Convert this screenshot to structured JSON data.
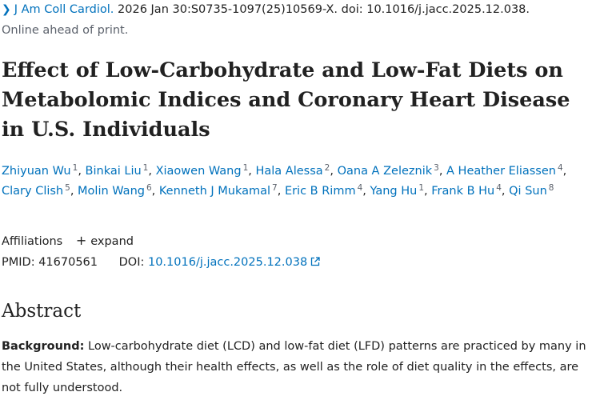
{
  "citation": {
    "journal": "J Am Coll Cardiol.",
    "details": "2026 Jan 30:S0735-1097(25)10569-X. doi: 10.1016/j.jacc.2025.12.038.",
    "status": "Online ahead of print."
  },
  "article": {
    "title": "Effect of Low-Carbohydrate and Low-Fat Diets on Metabolomic Indices and Coronary Heart Disease in U.S. Individuals"
  },
  "authors": [
    {
      "name": "Zhiyuan Wu",
      "aff": "1"
    },
    {
      "name": "Binkai Liu",
      "aff": "1"
    },
    {
      "name": "Xiaowen Wang",
      "aff": "1"
    },
    {
      "name": "Hala Alessa",
      "aff": "2"
    },
    {
      "name": "Oana A Zeleznik",
      "aff": "3"
    },
    {
      "name": "A Heather Eliassen",
      "aff": "4"
    },
    {
      "name": "Clary Clish",
      "aff": "5"
    },
    {
      "name": "Molin Wang",
      "aff": "6"
    },
    {
      "name": "Kenneth J Mukamal",
      "aff": "7"
    },
    {
      "name": "Eric B Rimm",
      "aff": "4"
    },
    {
      "name": "Yang Hu",
      "aff": "1"
    },
    {
      "name": "Frank B Hu",
      "aff": "4"
    },
    {
      "name": "Qi Sun",
      "aff": "8"
    }
  ],
  "affiliations": {
    "label": "Affiliations",
    "expand_label": "expand"
  },
  "identifiers": {
    "pmid_label": "PMID:",
    "pmid": "41670561",
    "doi_label": "DOI:",
    "doi": "10.1016/j.jacc.2025.12.038"
  },
  "abstract": {
    "heading": "Abstract",
    "background_label": "Background:",
    "background_text": " Low-carbohydrate diet (LCD) and low-fat diet (LFD) patterns are practiced by many in the United States, although their health effects, as well as the role of diet quality in the effects, are not fully understood."
  },
  "icons": {
    "breadcrumb": "chevron-right-icon",
    "expand": "plus-icon",
    "external": "external-link-icon"
  },
  "colors": {
    "link": "#0071bc",
    "text": "#212121",
    "muted": "#5b616b"
  }
}
